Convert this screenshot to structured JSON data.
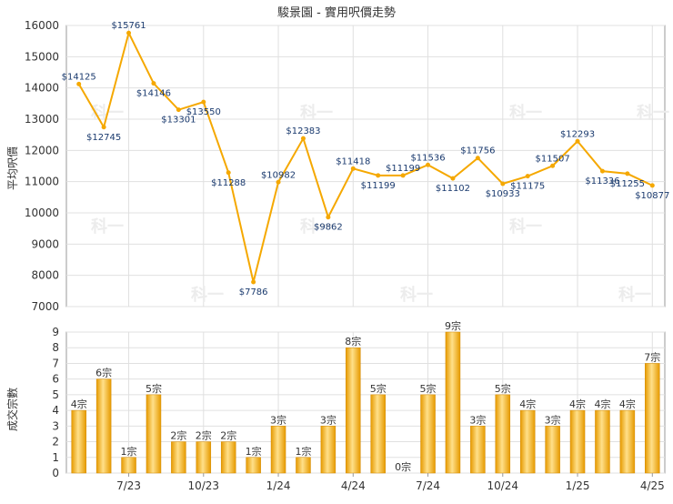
{
  "chart_data": [
    {
      "type": "line",
      "title": "駿景園 - 實用呎價走勢",
      "ylabel": "平均呎價",
      "ylim": [
        7000,
        16000
      ],
      "yticks": [
        7000,
        8000,
        9000,
        10000,
        11000,
        12000,
        13000,
        14000,
        15000,
        16000
      ],
      "grid": true,
      "color": "#f5a800",
      "data_labels": [
        "$14125",
        "$12745",
        "$15761",
        "$14146",
        "$13301",
        "$13550",
        "$11288",
        "$7786",
        "$10982",
        "$12383",
        "$9862",
        "$11418",
        "$11199",
        "$11199",
        "$11536",
        "$11102",
        "$11756",
        "$10933",
        "$11175",
        "$11507",
        "$12293",
        "$11336",
        "$11255",
        "$10877"
      ],
      "values": [
        14125,
        12745,
        15761,
        14146,
        13301,
        13550,
        11288,
        7786,
        10982,
        12383,
        9862,
        11418,
        11199,
        11199,
        11536,
        11102,
        11756,
        10933,
        11175,
        11507,
        12293,
        11336,
        11255,
        10877
      ]
    },
    {
      "type": "bar",
      "ylabel": "成交宗數",
      "ylim": [
        0,
        9
      ],
      "yticks": [
        0,
        1,
        2,
        3,
        4,
        5,
        6,
        7,
        8,
        9
      ],
      "grid": true,
      "color": "#f5a800",
      "x_tick_labels": [
        "7/23",
        "10/23",
        "1/24",
        "4/24",
        "7/24",
        "10/24",
        "1/25",
        "4/25"
      ],
      "data_labels": [
        "4宗",
        "6宗",
        "1宗",
        "5宗",
        "2宗",
        "2宗",
        "2宗",
        "1宗",
        "3宗",
        "1宗",
        "3宗",
        "8宗",
        "5宗",
        "0宗",
        "5宗",
        "9宗",
        "3宗",
        "5宗",
        "4宗",
        "3宗",
        "4宗",
        "4宗",
        "4宗",
        "7宗"
      ],
      "values": [
        4,
        6,
        1,
        5,
        2,
        2,
        2,
        1,
        3,
        1,
        3,
        8,
        5,
        0,
        5,
        9,
        3,
        5,
        4,
        3,
        4,
        4,
        4,
        7
      ]
    }
  ],
  "watermark": "科一"
}
